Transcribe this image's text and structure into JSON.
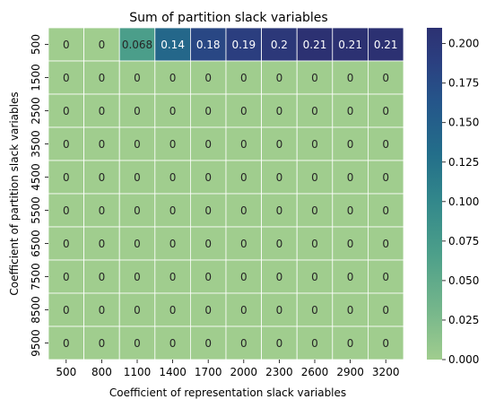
{
  "chart_data": {
    "type": "heatmap",
    "title": "Sum of partition slack variables",
    "xlabel": "Coefficient of representation slack variables",
    "ylabel": "Coefficient of partition slack variables",
    "x_categories": [
      "500",
      "800",
      "1100",
      "1400",
      "1700",
      "2000",
      "2300",
      "2600",
      "2900",
      "3200"
    ],
    "y_categories": [
      "500",
      "1500",
      "2500",
      "3500",
      "4500",
      "5500",
      "6500",
      "7500",
      "8500",
      "9500"
    ],
    "values": [
      [
        0,
        0,
        0.068,
        0.14,
        0.18,
        0.19,
        0.2,
        0.21,
        0.21,
        0.21
      ],
      [
        0,
        0,
        0,
        0,
        0,
        0,
        0,
        0,
        0,
        0
      ],
      [
        0,
        0,
        0,
        0,
        0,
        0,
        0,
        0,
        0,
        0
      ],
      [
        0,
        0,
        0,
        0,
        0,
        0,
        0,
        0,
        0,
        0
      ],
      [
        0,
        0,
        0,
        0,
        0,
        0,
        0,
        0,
        0,
        0
      ],
      [
        0,
        0,
        0,
        0,
        0,
        0,
        0,
        0,
        0,
        0
      ],
      [
        0,
        0,
        0,
        0,
        0,
        0,
        0,
        0,
        0,
        0
      ],
      [
        0,
        0,
        0,
        0,
        0,
        0,
        0,
        0,
        0,
        0
      ],
      [
        0,
        0,
        0,
        0,
        0,
        0,
        0,
        0,
        0,
        0
      ],
      [
        0,
        0,
        0,
        0,
        0,
        0,
        0,
        0,
        0,
        0
      ]
    ],
    "cell_labels": [
      [
        "0",
        "0",
        "0.068",
        "0.14",
        "0.18",
        "0.19",
        "0.2",
        "0.21",
        "0.21",
        "0.21"
      ],
      [
        "0",
        "0",
        "0",
        "0",
        "0",
        "0",
        "0",
        "0",
        "0",
        "0"
      ],
      [
        "0",
        "0",
        "0",
        "0",
        "0",
        "0",
        "0",
        "0",
        "0",
        "0"
      ],
      [
        "0",
        "0",
        "0",
        "0",
        "0",
        "0",
        "0",
        "0",
        "0",
        "0"
      ],
      [
        "0",
        "0",
        "0",
        "0",
        "0",
        "0",
        "0",
        "0",
        "0",
        "0"
      ],
      [
        "0",
        "0",
        "0",
        "0",
        "0",
        "0",
        "0",
        "0",
        "0",
        "0"
      ],
      [
        "0",
        "0",
        "0",
        "0",
        "0",
        "0",
        "0",
        "0",
        "0",
        "0"
      ],
      [
        "0",
        "0",
        "0",
        "0",
        "0",
        "0",
        "0",
        "0",
        "0",
        "0"
      ],
      [
        "0",
        "0",
        "0",
        "0",
        "0",
        "0",
        "0",
        "0",
        "0",
        "0"
      ],
      [
        "0",
        "0",
        "0",
        "0",
        "0",
        "0",
        "0",
        "0",
        "0",
        "0"
      ]
    ],
    "colorbar": {
      "range": [
        0,
        0.21
      ],
      "ticks": [
        "0.000",
        "0.025",
        "0.050",
        "0.075",
        "0.100",
        "0.125",
        "0.150",
        "0.175",
        "0.200"
      ],
      "colormap": "crest"
    },
    "colors": {
      "low": "#a0cd8e",
      "high": "#2c3172"
    },
    "grid": true
  }
}
